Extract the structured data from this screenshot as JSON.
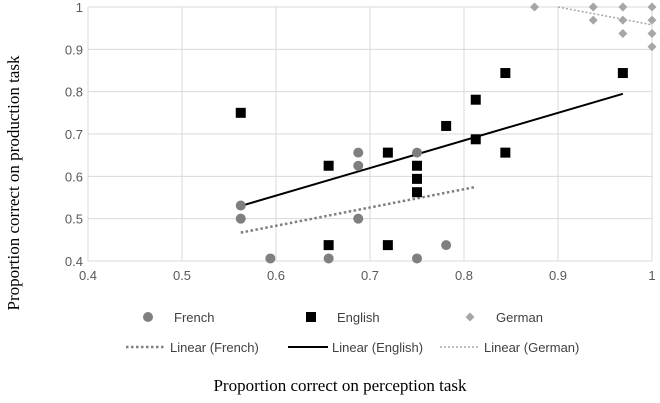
{
  "chart_data": {
    "type": "scatter",
    "xlabel": "Proportion correct on perception task",
    "ylabel": "Proportion correct on production task",
    "xlim": [
      0.4,
      1
    ],
    "ylim": [
      0.4,
      1
    ],
    "x_ticks": [
      "0.4",
      "0.5",
      "0.6",
      "0.7",
      "0.8",
      "0.9",
      "1"
    ],
    "y_ticks": [
      "0.4",
      "0.5",
      "0.6",
      "0.7",
      "0.8",
      "0.9",
      "1"
    ],
    "grid": true,
    "legend_position": "bottom",
    "series": [
      {
        "name": "French",
        "marker": "circle",
        "color": "#7f7f7f",
        "points": [
          [
            0.5625,
            0.531
          ],
          [
            0.5625,
            0.5
          ],
          [
            0.594,
            0.406
          ],
          [
            0.656,
            0.406
          ],
          [
            0.6875,
            0.656
          ],
          [
            0.6875,
            0.625
          ],
          [
            0.6875,
            0.5
          ],
          [
            0.75,
            0.656
          ],
          [
            0.75,
            0.406
          ],
          [
            0.781,
            0.4375
          ]
        ]
      },
      {
        "name": "English",
        "marker": "square",
        "color": "#000000",
        "points": [
          [
            0.5625,
            0.75
          ],
          [
            0.656,
            0.625
          ],
          [
            0.656,
            0.4375
          ],
          [
            0.719,
            0.656
          ],
          [
            0.719,
            0.4375
          ],
          [
            0.75,
            0.625
          ],
          [
            0.75,
            0.594
          ],
          [
            0.75,
            0.5625
          ],
          [
            0.781,
            0.719
          ],
          [
            0.8125,
            0.781
          ],
          [
            0.8125,
            0.6875
          ],
          [
            0.844,
            0.844
          ],
          [
            0.844,
            0.656
          ],
          [
            0.969,
            0.844
          ]
        ]
      },
      {
        "name": "German",
        "marker": "diamond",
        "color": "#a6a6a6",
        "points": [
          [
            0.875,
            1.0
          ],
          [
            0.9375,
            1.0
          ],
          [
            0.9375,
            0.969
          ],
          [
            0.969,
            1.0
          ],
          [
            0.969,
            0.969
          ],
          [
            0.969,
            0.9375
          ],
          [
            1.0,
            1.0
          ],
          [
            1.0,
            0.969
          ],
          [
            1.0,
            0.9375
          ],
          [
            1.0,
            0.906
          ]
        ]
      }
    ],
    "trendlines": [
      {
        "name": "Linear (French)",
        "style": "dotted",
        "color": "#7f7f7f",
        "from": [
          0.5625,
          0.467
        ],
        "to": [
          0.8125,
          0.575
        ]
      },
      {
        "name": "Linear (English)",
        "style": "solid",
        "color": "#000000",
        "from": [
          0.5625,
          0.53
        ],
        "to": [
          0.969,
          0.795
        ]
      },
      {
        "name": "Linear (German)",
        "style": "dotted",
        "color": "#a6a6a6",
        "from": [
          0.9,
          1.0
        ],
        "to": [
          1.0,
          0.958
        ]
      }
    ],
    "legend": {
      "series_labels": [
        "French",
        "English",
        "German"
      ],
      "trend_labels": [
        "Linear (French)",
        "Linear (English)",
        "Linear (German)"
      ]
    }
  }
}
